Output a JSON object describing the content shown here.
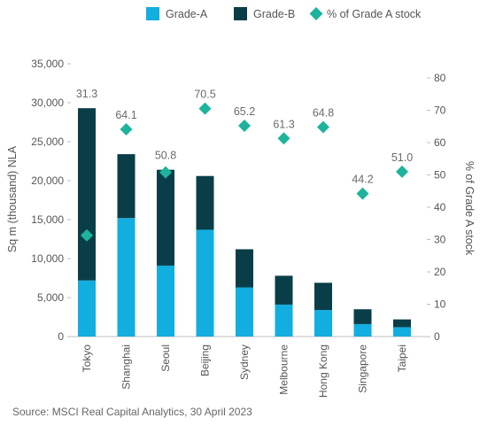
{
  "chart_data": {
    "type": "bar",
    "stacked": true,
    "categories": [
      "Tokyo",
      "Shanghai",
      "Seoul",
      "Beijing",
      "Sydney",
      "Melbourne",
      "Hong Kong",
      "Singapore",
      "Taipei"
    ],
    "series": [
      {
        "name": "Grade-A",
        "values": [
          7200,
          15200,
          9100,
          13700,
          6300,
          4100,
          3400,
          1600,
          1200
        ],
        "color": "#12aee0"
      },
      {
        "name": "Grade-B",
        "values": [
          22100,
          8200,
          12300,
          6900,
          4900,
          3700,
          3500,
          1900,
          1000
        ],
        "color": "#093e48"
      }
    ],
    "secondary_series": {
      "name": "% of Grade A stock",
      "values": [
        31.3,
        64.1,
        50.8,
        70.5,
        65.2,
        61.3,
        64.8,
        44.2,
        51.0
      ],
      "labels": [
        "31.3",
        "64.1",
        "50.8",
        "70.5",
        "65.2",
        "61.3",
        "64.8",
        "44.2",
        "51.0"
      ],
      "color": "#1db39c"
    },
    "ylabel": "Sq m (thousand) NLA",
    "y2label": "% of Grade A stock",
    "ylim": [
      0,
      35000
    ],
    "y2lim": [
      0,
      80
    ],
    "yticks": [
      "0",
      "5,000",
      "10,000",
      "15,000",
      "20,000",
      "25,000",
      "30,000",
      "35,000"
    ],
    "y2ticks": [
      "0",
      "10",
      "20",
      "30",
      "40",
      "50",
      "60",
      "70",
      "80"
    ],
    "grid": false,
    "legend_position": "top",
    "source": "Source: MSCI Real Capital Analytics, 30 April 2023"
  }
}
